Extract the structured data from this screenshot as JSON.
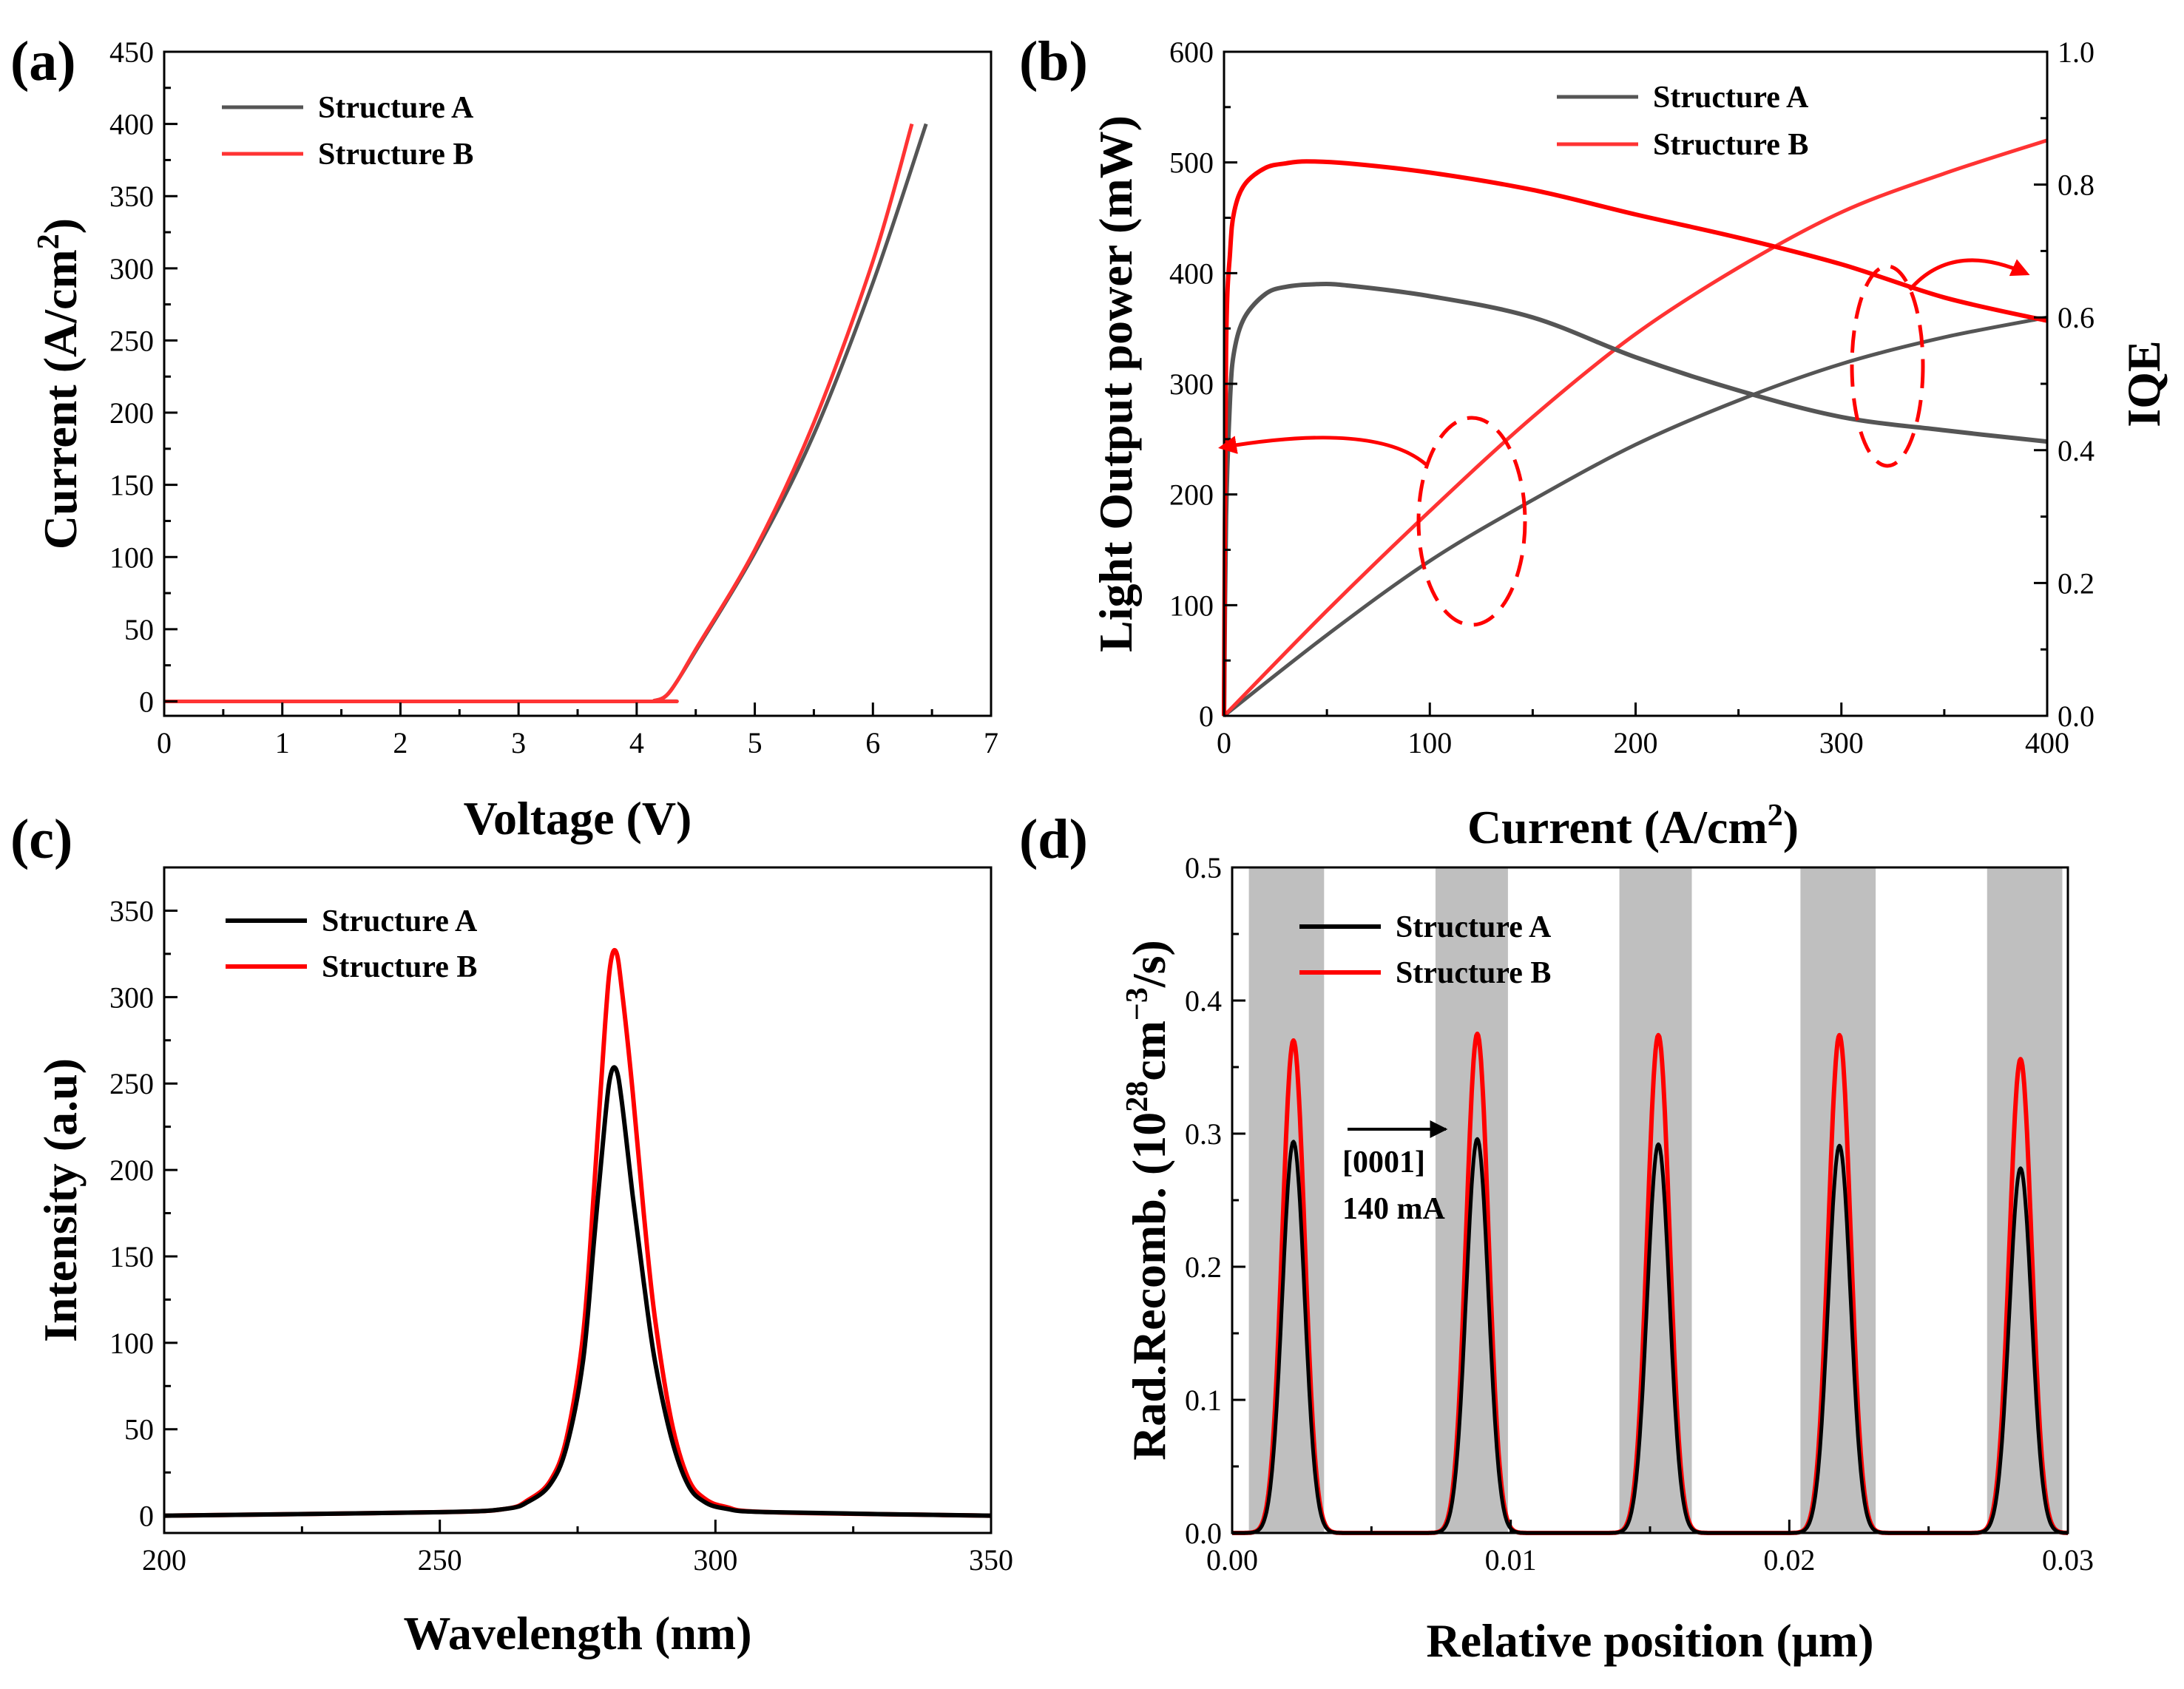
{
  "colors": {
    "structure_a": "#555555",
    "structure_a_dark": "#000000",
    "structure_b": "#ff3333",
    "structure_b_bright": "#ff0000",
    "well": "#bfbfbf",
    "axis": "#000000"
  },
  "chart_data": [
    {
      "id": "a",
      "type": "line",
      "panel_label": "(a)",
      "title": "",
      "xlabel": "Voltage (V)",
      "ylabel_main": "Current (A/cm",
      "ylabel_sup": "2",
      "ylabel_tail": ")",
      "xlim": [
        0,
        7
      ],
      "ylim": [
        -10,
        450
      ],
      "xticks": [
        0,
        1,
        2,
        3,
        4,
        5,
        6,
        7
      ],
      "yticks": [
        0,
        50,
        100,
        150,
        200,
        250,
        300,
        350,
        400,
        450
      ],
      "legend": "top-left",
      "series": [
        {
          "name": "Structure A",
          "color": "#555555",
          "x": [
            0,
            4.0,
            4.15,
            4.25,
            4.35,
            4.5,
            5.0,
            5.5,
            6.0,
            6.45
          ],
          "y": [
            0,
            0,
            0.5,
            4,
            15,
            35,
            103,
            185,
            290,
            400
          ]
        },
        {
          "name": "Structure B",
          "color": "#ff3333",
          "x": [
            0,
            4.0,
            4.15,
            4.25,
            4.35,
            4.5,
            5.0,
            5.5,
            6.0,
            6.33
          ],
          "y": [
            0,
            0,
            0.5,
            4,
            15,
            36,
            105,
            193,
            305,
            400
          ]
        }
      ]
    },
    {
      "id": "b",
      "type": "line",
      "panel_label": "(b)",
      "title": "",
      "xlabel_main": "Current (A/cm",
      "xlabel_sup": "2",
      "xlabel_tail": ")",
      "ylabel": "Light Output power (mW)",
      "y2label": "IQE",
      "xlim": [
        0,
        400
      ],
      "ylim": [
        0,
        600
      ],
      "y2lim": [
        0,
        1.0
      ],
      "xticks": [
        0,
        100,
        200,
        300,
        400
      ],
      "yticks": [
        0,
        100,
        200,
        300,
        400,
        500,
        600
      ],
      "y2ticks": [
        0.0,
        0.2,
        0.4,
        0.6,
        0.8,
        1.0
      ],
      "y2ticklabels": [
        "0.0",
        "0.2",
        "0.4",
        "0.6",
        "0.8",
        "1.0"
      ],
      "legend": "top-right",
      "series": [
        {
          "name": "Structure A",
          "color": "#555555",
          "axis": "left",
          "x": [
            0,
            50,
            100,
            150,
            200,
            250,
            300,
            350,
            400
          ],
          "y": [
            0,
            73,
            140,
            195,
            245,
            285,
            318,
            342,
            360
          ]
        },
        {
          "name": "Structure B",
          "color": "#ff3333",
          "axis": "left",
          "x": [
            0,
            50,
            100,
            150,
            200,
            250,
            300,
            350,
            400
          ],
          "y": [
            0,
            95,
            185,
            270,
            345,
            405,
            455,
            490,
            520
          ]
        },
        {
          "name": "IQE A",
          "color": "#555555",
          "axis": "right",
          "x": [
            0,
            1,
            3,
            5,
            10,
            20,
            30,
            45,
            60,
            100,
            150,
            200,
            250,
            300,
            350,
            400
          ],
          "y": [
            0,
            0.3,
            0.48,
            0.55,
            0.6,
            0.635,
            0.646,
            0.65,
            0.648,
            0.632,
            0.6,
            0.54,
            0.49,
            0.45,
            0.43,
            0.413
          ]
        },
        {
          "name": "IQE B",
          "color": "#ff0000",
          "axis": "right",
          "x": [
            0,
            1,
            3,
            5,
            10,
            20,
            30,
            40,
            60,
            100,
            150,
            200,
            250,
            300,
            350,
            400
          ],
          "y": [
            0,
            0.55,
            0.7,
            0.76,
            0.8,
            0.825,
            0.832,
            0.835,
            0.832,
            0.818,
            0.792,
            0.755,
            0.72,
            0.68,
            0.63,
            0.595
          ]
        }
      ]
    },
    {
      "id": "c",
      "type": "line",
      "panel_label": "(c)",
      "title": "",
      "xlabel": "Wavelength (nm)",
      "ylabel": "Intensity (a.u)",
      "xlim": [
        200,
        350
      ],
      "ylim": [
        -10,
        375
      ],
      "xticks": [
        200,
        250,
        300,
        350
      ],
      "yticks": [
        0,
        50,
        100,
        150,
        200,
        250,
        300,
        350
      ],
      "legend": "top-left",
      "series": [
        {
          "name": "Structure A",
          "color": "#000000",
          "x": [
            200,
            250,
            262,
            266,
            270,
            273,
            276,
            278,
            280,
            281,
            282,
            283,
            285,
            287,
            289,
            292,
            295,
            298,
            302,
            310,
            350
          ],
          "y": [
            0,
            2,
            4,
            8,
            18,
            40,
            90,
            160,
            230,
            255,
            258,
            240,
            185,
            135,
            90,
            45,
            18,
            8,
            4,
            2,
            0
          ]
        },
        {
          "name": "Structure B",
          "color": "#ff0000",
          "x": [
            200,
            250,
            262,
            266,
            270,
            273,
            276,
            278,
            280,
            281,
            282,
            283,
            285,
            287,
            289,
            292,
            295,
            298,
            302,
            310,
            350
          ],
          "y": [
            0,
            2,
            4,
            9,
            20,
            45,
            105,
            190,
            285,
            320,
            326,
            305,
            245,
            175,
            115,
            55,
            22,
            10,
            5,
            2,
            0
          ]
        }
      ]
    },
    {
      "id": "d",
      "type": "line",
      "panel_label": "(d)",
      "title": "",
      "xlabel": "Relative position (μm)",
      "ylabel_main": "Rad.Recomb. (10",
      "ylabel_sup1": "28",
      "ylabel_mid": "cm",
      "ylabel_sup2": "−3",
      "ylabel_tail": "/s)",
      "xlim": [
        0.0,
        0.03
      ],
      "ylim": [
        0.0,
        0.5
      ],
      "xticks": [
        0.0,
        0.01,
        0.02,
        0.03
      ],
      "xticklabels": [
        "0.00",
        "0.01",
        "0.02",
        "0.03"
      ],
      "yticks": [
        0.0,
        0.1,
        0.2,
        0.3,
        0.4,
        0.5
      ],
      "yticklabels": [
        "0.0",
        "0.1",
        "0.2",
        "0.3",
        "0.4",
        "0.5"
      ],
      "legend": "top-left",
      "annotation_lines": [
        "[0001]",
        "140 mA"
      ],
      "wells": [
        [
          0.0006,
          0.0033
        ],
        [
          0.0073,
          0.0099
        ],
        [
          0.0139,
          0.0165
        ],
        [
          0.0204,
          0.0231
        ],
        [
          0.0271,
          0.0298
        ]
      ],
      "peak_width_um": 0.0004,
      "series": [
        {
          "name": "Structure A",
          "color": "#000000",
          "peak_centers": [
            0.0022,
            0.0088,
            0.0153,
            0.0218,
            0.0283
          ],
          "peak_heights": [
            0.294,
            0.296,
            0.292,
            0.291,
            0.274
          ]
        },
        {
          "name": "Structure B",
          "color": "#ff0000",
          "peak_centers": [
            0.0022,
            0.0088,
            0.0153,
            0.0218,
            0.0283
          ],
          "peak_heights": [
            0.37,
            0.375,
            0.374,
            0.374,
            0.356
          ]
        }
      ]
    }
  ]
}
